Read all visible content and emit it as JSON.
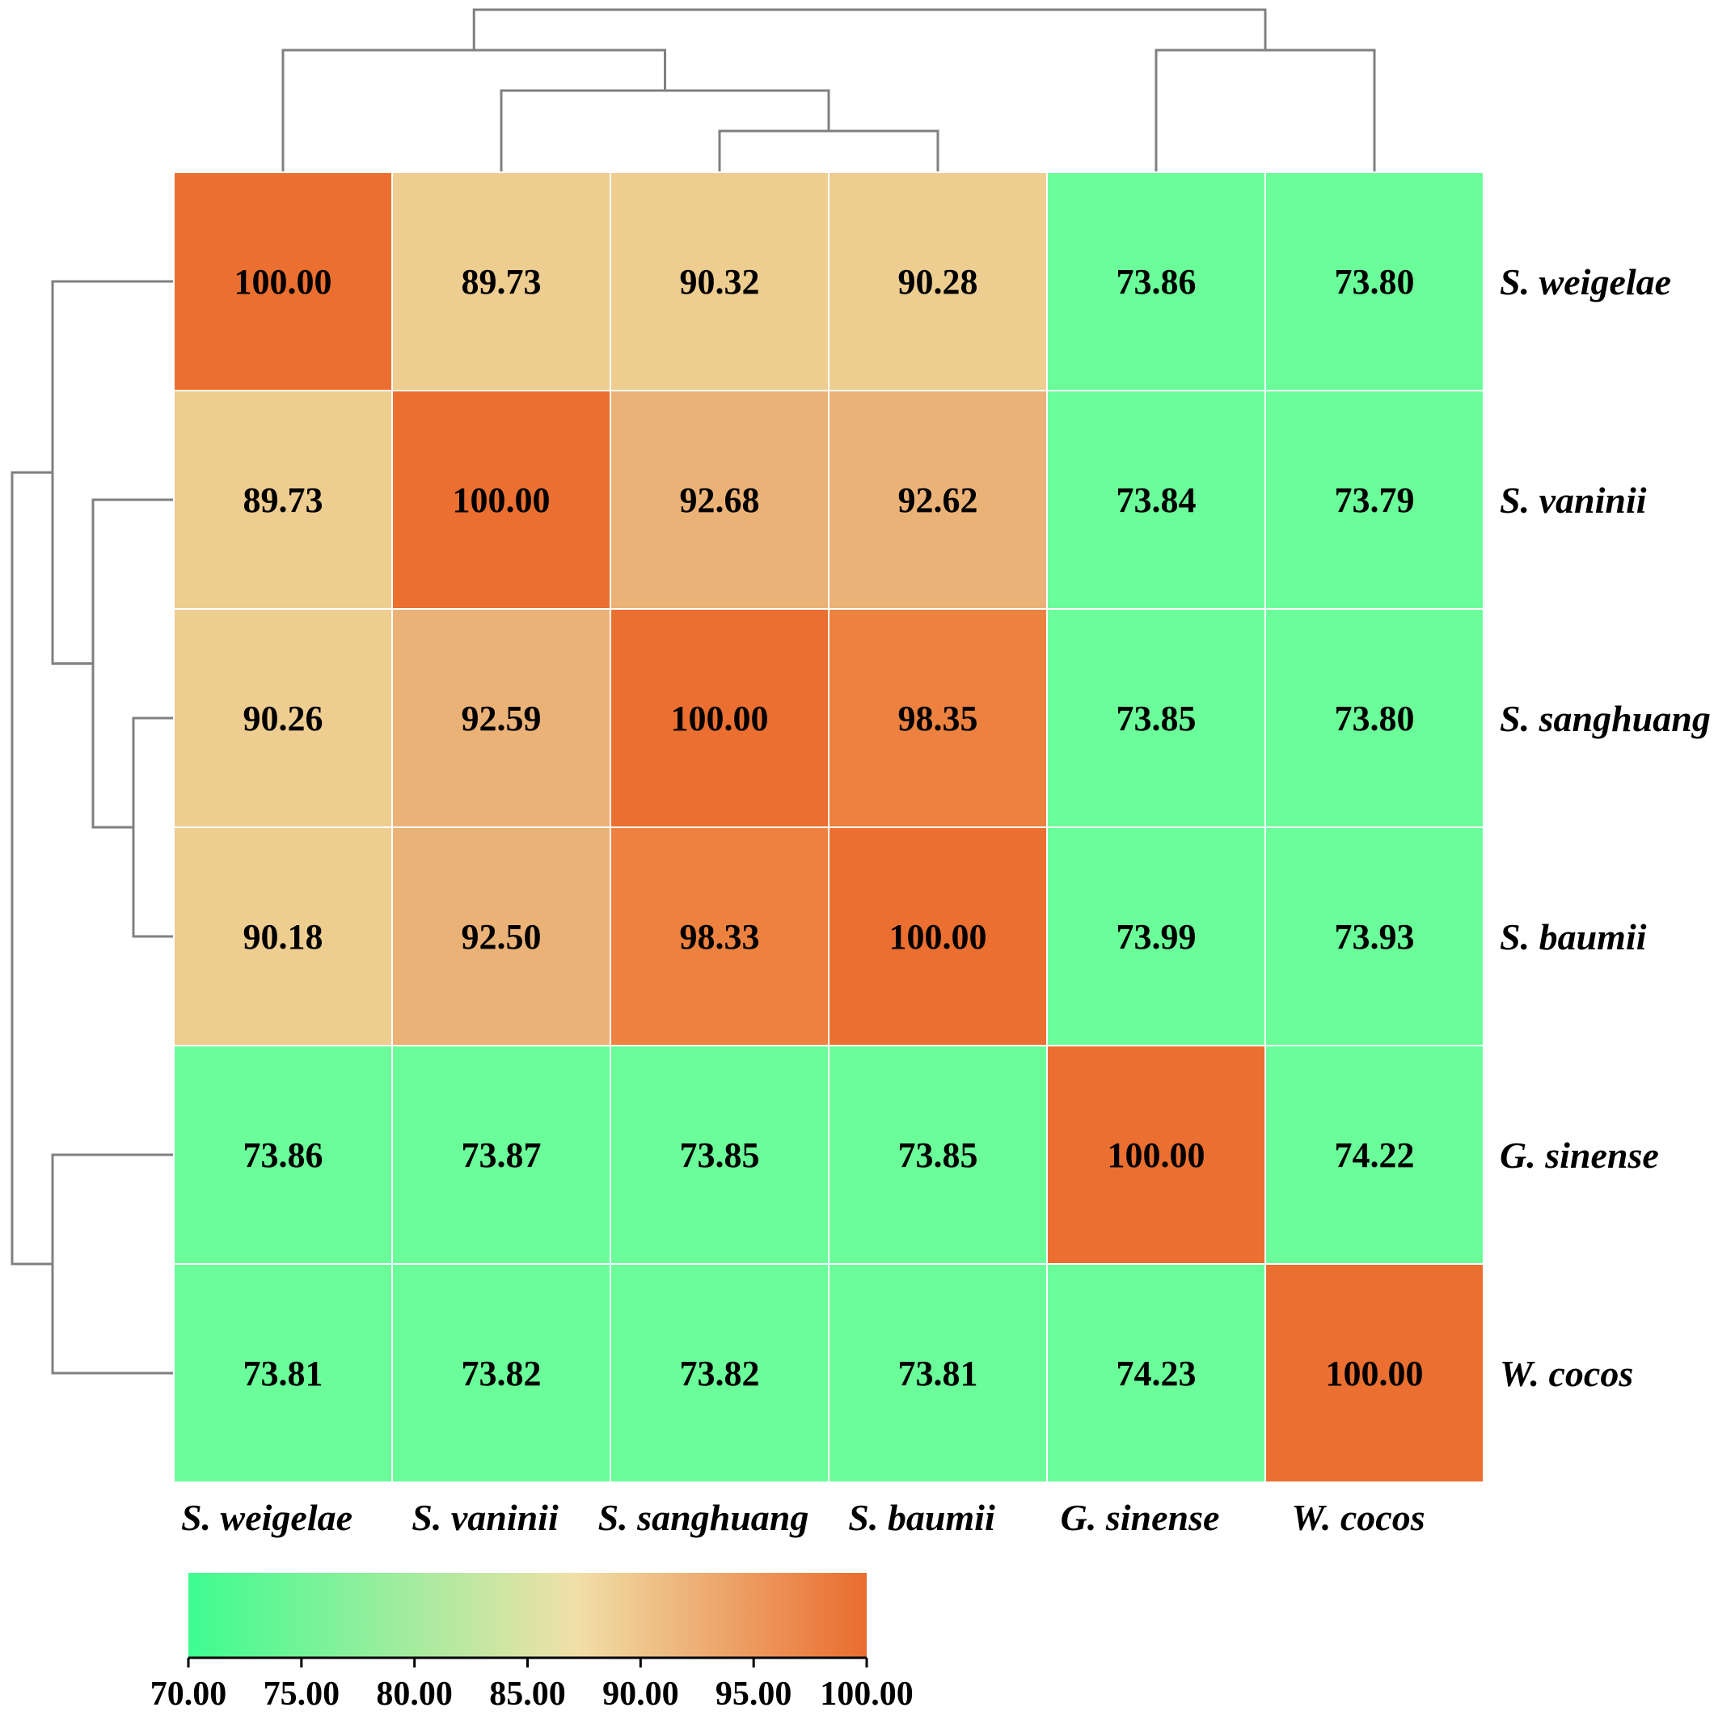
{
  "chart_data": {
    "type": "heatmap",
    "row_labels": [
      "S. weigelae",
      "S. vaninii",
      "S. sanghuang",
      "S. baumii",
      "G. sinense",
      "W. cocos"
    ],
    "col_labels": [
      "S. weigelae",
      "S. vaninii",
      "S. sanghuang",
      "S. baumii",
      "G. sinense",
      "W. cocos"
    ],
    "values": [
      [
        "100.00",
        "89.73",
        "90.32",
        "90.28",
        "73.86",
        "73.80"
      ],
      [
        "89.73",
        "100.00",
        "92.68",
        "92.62",
        "73.84",
        "73.79"
      ],
      [
        "90.26",
        "92.59",
        "100.00",
        "98.35",
        "73.85",
        "73.80"
      ],
      [
        "90.18",
        "92.50",
        "98.33",
        "100.00",
        "73.99",
        "73.93"
      ],
      [
        "73.86",
        "73.87",
        "73.85",
        "73.85",
        "100.00",
        "74.22"
      ],
      [
        "73.81",
        "73.82",
        "73.82",
        "73.81",
        "74.23",
        "100.00"
      ]
    ],
    "colorbar": {
      "min": 70,
      "max": 100,
      "ticks": [
        "70.00",
        "75.00",
        "80.00",
        "85.00",
        "90.00",
        "95.00",
        "100.00"
      ],
      "colors": [
        "#3dfc91",
        "#f0e0a8",
        "#ea6c2f"
      ]
    },
    "cell_colors": {
      "low": "#6afd9a",
      "mid": "#eecd91",
      "high": "#ebb277",
      "near_max": "#ec8140",
      "max": "#ea6f30"
    },
    "dendrogram_color": "#808080",
    "grid": false,
    "legend": "bottom-left colorbar"
  }
}
